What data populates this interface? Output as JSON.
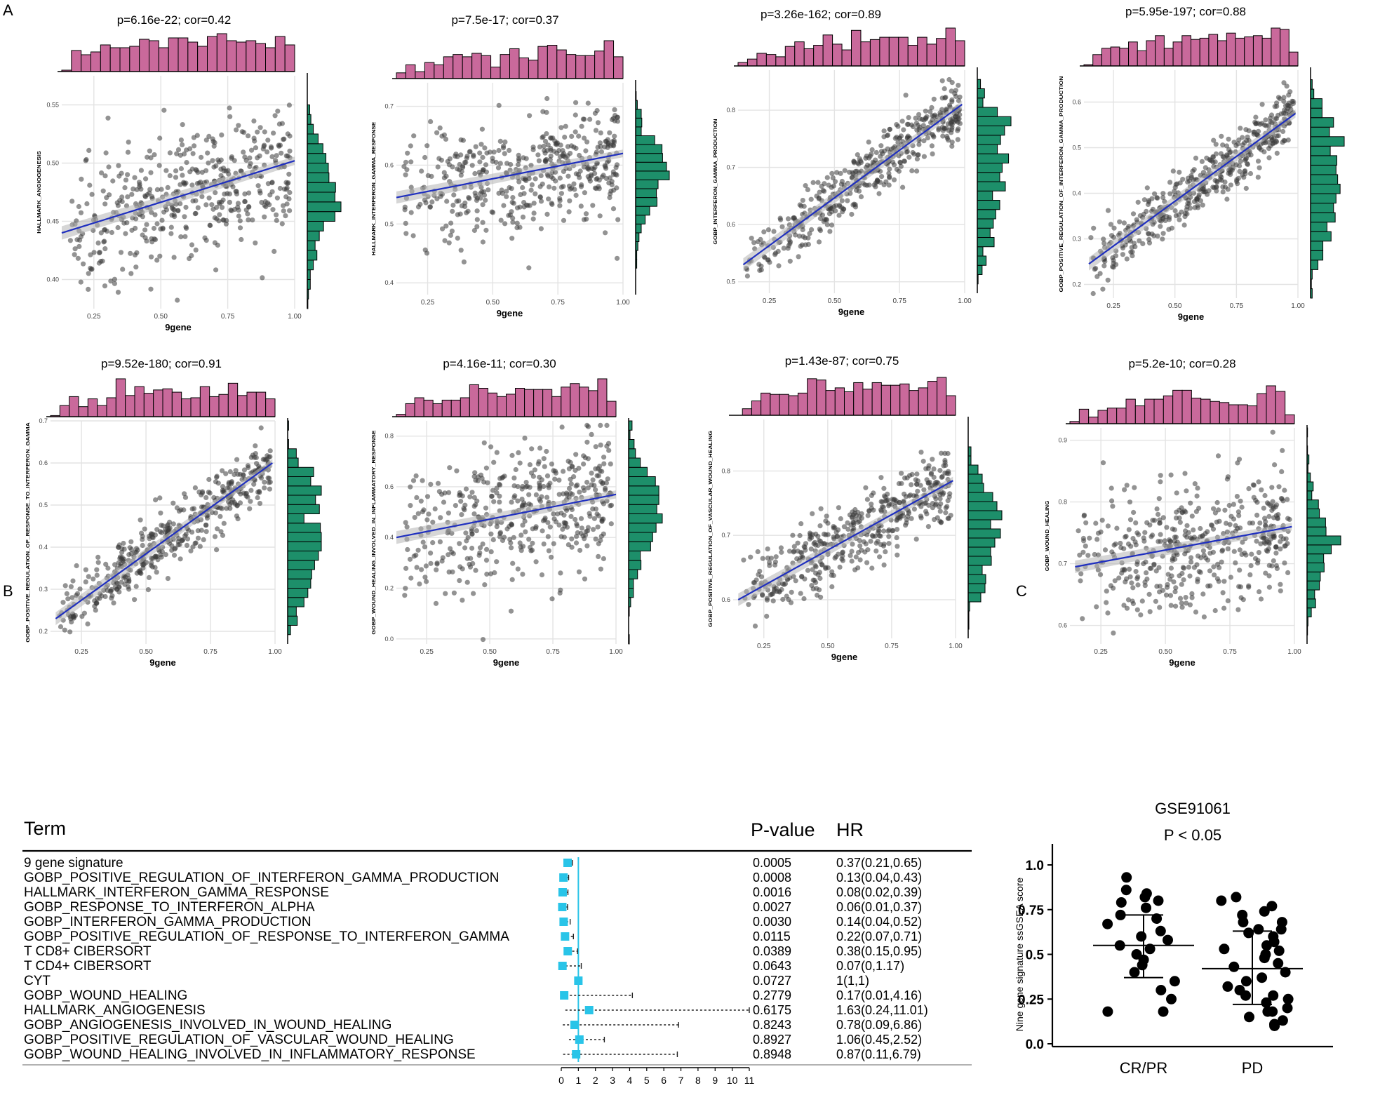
{
  "panel_labels": [
    "A",
    "B",
    "C"
  ],
  "colors": {
    "histogram_x": "#c9699b",
    "histogram_y": "#1d8f6a",
    "points": "#3a3a3a",
    "fit_line": "#1f2fbf",
    "forest_marker": "#29c4e8",
    "forest_refline": "#29c4e8"
  },
  "chart_data": [
    {
      "type": "scatter",
      "title": "p=6.16e-22; cor=0.42",
      "xlabel": "9gene",
      "ylabel": "HALLMARK_ANGIOGENESIS",
      "xlim": [
        0.13,
        1.0
      ],
      "ylim": [
        0.375,
        0.575
      ],
      "xticks": [
        "0.25",
        "0.50",
        "0.75",
        "1.00"
      ],
      "yticks": [
        "0.40",
        "0.45",
        "0.50",
        "0.55"
      ],
      "fit": {
        "x": [
          0.13,
          1.0
        ],
        "y": [
          0.44,
          0.502
        ]
      },
      "cor": 0.42,
      "n_points": 460
    },
    {
      "type": "scatter",
      "title": "p=7.5e-17; cor=0.37",
      "xlabel": "9gene",
      "ylabel": "HALLMARK_INTERFERON_GAMMA_RESPONSE",
      "xlim": [
        0.13,
        1.0
      ],
      "ylim": [
        0.38,
        0.74
      ],
      "xticks": [
        "0.25",
        "0.50",
        "0.75",
        "1.00"
      ],
      "yticks": [
        "0.4",
        "0.5",
        "0.6",
        "0.7"
      ],
      "fit": {
        "x": [
          0.13,
          1.0
        ],
        "y": [
          0.545,
          0.62
        ]
      },
      "cor": 0.37,
      "n_points": 460
    },
    {
      "type": "scatter",
      "title": "p=3.26e-162; cor=0.89",
      "xlabel": "9gene",
      "ylabel": "GOBP_INTERFERON_GAMMA_PRODUCTION",
      "xlim": [
        0.13,
        1.0
      ],
      "ylim": [
        0.48,
        0.87
      ],
      "xticks": [
        "0.25",
        "0.50",
        "0.75",
        "1.00"
      ],
      "yticks": [
        "0.5",
        "0.6",
        "0.7",
        "0.8"
      ],
      "fit": {
        "x": [
          0.15,
          0.99
        ],
        "y": [
          0.53,
          0.81
        ]
      },
      "cor": 0.89,
      "n_points": 460
    },
    {
      "type": "scatter",
      "title": "p=5.95e-197; cor=0.88",
      "xlabel": "9gene",
      "ylabel": "GOBP_POSITIVE_REGULATION_OF_INTERFERON_GAMMA_PRODUCTION",
      "xlim": [
        0.13,
        1.0
      ],
      "ylim": [
        0.17,
        0.67
      ],
      "xticks": [
        "0.25",
        "0.50",
        "0.75",
        "1.00"
      ],
      "yticks": [
        "0.2",
        "0.3",
        "0.4",
        "0.5",
        "0.6"
      ],
      "fit": {
        "x": [
          0.15,
          0.99
        ],
        "y": [
          0.245,
          0.575
        ]
      },
      "cor": 0.88,
      "n_points": 460
    },
    {
      "type": "scatter",
      "title": "p=9.52e-180; cor=0.91",
      "xlabel": "9gene",
      "ylabel": "GOBP_POSITIVE_REGULATION_OF_RESPONSE_TO_INTERFERON_GAMMA",
      "xlim": [
        0.13,
        1.0
      ],
      "ylim": [
        0.17,
        0.7
      ],
      "xticks": [
        "0.25",
        "0.50",
        "0.75",
        "1.00"
      ],
      "yticks": [
        "0.2",
        "0.3",
        "0.4",
        "0.5",
        "0.6",
        "0.7"
      ],
      "fit": {
        "x": [
          0.15,
          0.99
        ],
        "y": [
          0.23,
          0.6
        ]
      },
      "cor": 0.91,
      "n_points": 460
    },
    {
      "type": "scatter",
      "title": "p=4.16e-11; cor=0.30",
      "xlabel": "9gene",
      "ylabel": "GOBP_WOUND_HEALING_INVOLVED_IN_INFLAMMATORY_RESPONSE",
      "xlim": [
        0.13,
        1.0
      ],
      "ylim": [
        -0.02,
        0.86
      ],
      "xticks": [
        "0.25",
        "0.50",
        "0.75",
        "1.00"
      ],
      "yticks": [
        "0.0",
        "0.2",
        "0.4",
        "0.6",
        "0.8"
      ],
      "fit": {
        "x": [
          0.13,
          1.0
        ],
        "y": [
          0.4,
          0.57
        ]
      },
      "cor": 0.3,
      "n_points": 460
    },
    {
      "type": "scatter",
      "title": "p=1.43e-87; cor=0.75",
      "xlabel": "9gene",
      "ylabel": "GOBP_POSITIVE_REGULATION_OF_VASCULAR_WOUND_HEALING",
      "xlim": [
        0.13,
        1.0
      ],
      "ylim": [
        0.54,
        0.88
      ],
      "xticks": [
        "0.25",
        "0.50",
        "0.75",
        "1.00"
      ],
      "yticks": [
        "0.6",
        "0.7",
        "0.8"
      ],
      "fit": {
        "x": [
          0.15,
          0.99
        ],
        "y": [
          0.6,
          0.785
        ]
      },
      "cor": 0.75,
      "n_points": 460
    },
    {
      "type": "scatter",
      "title": "p=5.2e-10; cor=0.28",
      "xlabel": "9gene",
      "ylabel": "GOBP_WOUND_HEALING",
      "xlim": [
        0.13,
        1.0
      ],
      "ylim": [
        0.57,
        0.92
      ],
      "xticks": [
        "0.25",
        "0.50",
        "0.75",
        "1.00"
      ],
      "yticks": [
        "0.6",
        "0.7",
        "0.8",
        "0.9"
      ],
      "fit": {
        "x": [
          0.15,
          0.99
        ],
        "y": [
          0.695,
          0.76
        ]
      },
      "cor": 0.28,
      "n_points": 460
    },
    {
      "type": "forest",
      "headers": {
        "term": "Term",
        "pvalue": "P-value",
        "hr": "HR"
      },
      "xlim": [
        0,
        11
      ],
      "xticks": [
        "0",
        "1",
        "2",
        "3",
        "4",
        "5",
        "6",
        "7",
        "8",
        "9",
        "10",
        "11"
      ],
      "reference": 1,
      "rows": [
        {
          "term": "9 gene signature",
          "p": "0.0005",
          "hr_text": "0.37(0.21,0.65)",
          "hr": 0.37,
          "lo": 0.21,
          "hi": 0.65
        },
        {
          "term": "GOBP_POSITIVE_REGULATION_OF_INTERFERON_GAMMA_PRODUCTION",
          "p": "0.0008",
          "hr_text": "0.13(0.04,0.43)",
          "hr": 0.13,
          "lo": 0.04,
          "hi": 0.43
        },
        {
          "term": "HALLMARK_INTERFERON_GAMMA_RESPONSE",
          "p": "0.0016",
          "hr_text": "0.08(0.02,0.39)",
          "hr": 0.08,
          "lo": 0.02,
          "hi": 0.39
        },
        {
          "term": "GOBP_RESPONSE_TO_INTERFERON_ALPHA",
          "p": "0.0027",
          "hr_text": "0.06(0.01,0.37)",
          "hr": 0.06,
          "lo": 0.01,
          "hi": 0.37
        },
        {
          "term": "GOBP_INTERFERON_GAMMA_PRODUCTION",
          "p": "0.0030",
          "hr_text": "0.14(0.04,0.52)",
          "hr": 0.14,
          "lo": 0.04,
          "hi": 0.52
        },
        {
          "term": "GOBP_POSITIVE_REGULATION_OF_RESPONSE_TO_INTERFERON_GAMMA",
          "p": "0.0115",
          "hr_text": "0.22(0.07,0.71)",
          "hr": 0.22,
          "lo": 0.07,
          "hi": 0.71
        },
        {
          "term": "T CD8+ CIBERSORT",
          "p": "0.0389",
          "hr_text": "0.38(0.15,0.95)",
          "hr": 0.38,
          "lo": 0.15,
          "hi": 0.95
        },
        {
          "term": "T CD4+ CIBERSORT",
          "p": "0.0643",
          "hr_text": "0.07(0,1.17)",
          "hr": 0.07,
          "lo": 0,
          "hi": 1.17
        },
        {
          "term": "CYT",
          "p": "0.0727",
          "hr_text": "1(1,1)",
          "hr": 1,
          "lo": 1,
          "hi": 1
        },
        {
          "term": "GOBP_WOUND_HEALING",
          "p": "0.2779",
          "hr_text": "0.17(0.01,4.16)",
          "hr": 0.17,
          "lo": 0.01,
          "hi": 4.16
        },
        {
          "term": "HALLMARK_ANGIOGENESIS",
          "p": "0.6175",
          "hr_text": "1.63(0.24,11.01)",
          "hr": 1.63,
          "lo": 0.24,
          "hi": 11.01
        },
        {
          "term": "GOBP_ANGIOGENESIS_INVOLVED_IN_WOUND_HEALING",
          "p": "0.8243",
          "hr_text": "0.78(0.09,6.86)",
          "hr": 0.78,
          "lo": 0.09,
          "hi": 6.86
        },
        {
          "term": "GOBP_POSITIVE_REGULATION_OF_VASCULAR_WOUND_HEALING",
          "p": "0.8927",
          "hr_text": "1.06(0.45,2.52)",
          "hr": 1.06,
          "lo": 0.45,
          "hi": 2.52
        },
        {
          "term": "GOBP_WOUND_HEALING_INVOLVED_IN_INFLAMMATORY_RESPONSE",
          "p": "0.8948",
          "hr_text": "0.87(0.11,6.79)",
          "hr": 0.87,
          "lo": 0.11,
          "hi": 6.79
        }
      ]
    },
    {
      "type": "dot",
      "title": "GSE91061",
      "subtitle": "P < 0.05",
      "ylabel": "Nine gene signature ssGSEA score",
      "categories": [
        "CR/PR",
        "PD"
      ],
      "ylim": [
        0,
        1.0
      ],
      "yticks": [
        "0.0",
        "0.25",
        "0.5",
        "0.75",
        "1.0"
      ],
      "groups": [
        {
          "name": "CR/PR",
          "mean": 0.55,
          "sd_low": 0.37,
          "sd_high": 0.72,
          "values": [
            0.93,
            0.86,
            0.84,
            0.82,
            0.8,
            0.79,
            0.76,
            0.72,
            0.7,
            0.67,
            0.63,
            0.6,
            0.58,
            0.55,
            0.53,
            0.5,
            0.47,
            0.44,
            0.4,
            0.35,
            0.3,
            0.25,
            0.18,
            0.18
          ]
        },
        {
          "name": "PD",
          "mean": 0.42,
          "sd_low": 0.22,
          "sd_high": 0.63,
          "values": [
            0.82,
            0.8,
            0.77,
            0.74,
            0.72,
            0.68,
            0.64,
            0.64,
            0.62,
            0.6,
            0.57,
            0.55,
            0.53,
            0.5,
            0.48,
            0.45,
            0.43,
            0.4,
            0.37,
            0.35,
            0.32,
            0.3,
            0.27,
            0.25,
            0.23,
            0.2,
            0.18,
            0.15,
            0.13,
            0.11,
            0.1,
            0.18,
            0.27,
            0.52,
            0.68
          ]
        }
      ]
    }
  ]
}
